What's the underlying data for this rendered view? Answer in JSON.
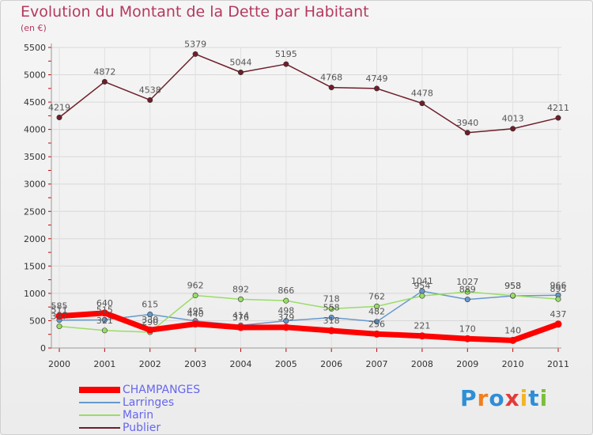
{
  "chart_data": {
    "type": "line",
    "title": "Evolution du Montant de la Dette par Habitant",
    "subtitle": "(en €)",
    "xlabel": "",
    "ylabel": "",
    "x": [
      "2000",
      "2001",
      "2002",
      "2003",
      "2004",
      "2005",
      "2006",
      "2007",
      "2008",
      "2009",
      "2010",
      "2011"
    ],
    "ylim": [
      0,
      5500
    ],
    "yticks": [
      "0",
      "500",
      "1000",
      "1500",
      "2000",
      "2500",
      "3000",
      "3500",
      "4000",
      "4500",
      "5000",
      "5500"
    ],
    "ytick_values": [
      0,
      500,
      1000,
      1500,
      2000,
      2500,
      3000,
      3500,
      4000,
      4500,
      5000,
      5500
    ],
    "grid": true,
    "legend": "bottom-left",
    "series": [
      {
        "name": "CHAMPANGES",
        "color": "#ff0000",
        "values": [
          585,
          640,
          330,
          440,
          376,
          379,
          318,
          256,
          221,
          170,
          140,
          437
        ],
        "labels": [
          "585",
          "640",
          "330",
          "440",
          "376",
          "379",
          "318",
          "256",
          "221",
          "170",
          "140",
          "437"
        ]
      },
      {
        "name": "Larringes",
        "color": "#6699cc",
        "values": [
          511,
          515,
          615,
          495,
          414,
          498,
          558,
          482,
          1041,
          889,
          953,
          966
        ],
        "labels": [
          "511",
          "515",
          "615",
          "495",
          "414",
          "498",
          "558",
          "482",
          "1041",
          "889",
          "953",
          "966"
        ]
      },
      {
        "name": "Marin",
        "color": "#99dd66",
        "values": [
          397,
          321,
          290,
          962,
          892,
          866,
          718,
          762,
          954,
          1027,
          958,
          895
        ],
        "labels": [
          "397",
          "321",
          "290",
          "962",
          "892",
          "866",
          "718",
          "762",
          "954",
          "1027",
          "958",
          "895"
        ]
      },
      {
        "name": "Publier",
        "color": "#6e1e2a",
        "values": [
          4219,
          4872,
          4538,
          5379,
          5044,
          5195,
          4768,
          4749,
          4478,
          3940,
          4013,
          4211
        ],
        "labels": [
          "4219",
          "4872",
          "4538",
          "5379",
          "5044",
          "5195",
          "4768",
          "4749",
          "4478",
          "3940",
          "4013",
          "4211"
        ]
      }
    ]
  },
  "brand": {
    "letters": [
      "P",
      "r",
      "o",
      "x",
      "i",
      "t",
      "i"
    ]
  }
}
